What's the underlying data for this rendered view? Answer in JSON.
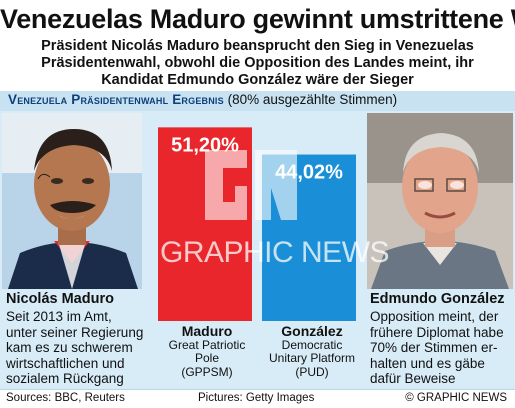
{
  "title": "Venezuelas Maduro gewinnt umstrittene Wahl",
  "subtitle": {
    "lines": [
      "Präsident Nicolás Maduro beansprucht den Sieg in Venezuelas",
      "Präsidentenwahl, obwohl die Opposition des Landes meint, ihr",
      "Kandidat  Edmundo González wäre der Sieger"
    ]
  },
  "panel": {
    "title_strong": "Venezuela Präsidentenwahl Ergebnis",
    "title_note": "(80% ausgezählte Stimmen)"
  },
  "candidates": {
    "left": {
      "name": "Nicolás Maduro",
      "description": [
        "Seit 2013 im Amt,",
        "unter seiner Regierung",
        "kam es zu schwerem",
        "wirtschaftlichen und",
        "sozialem Rückgang"
      ]
    },
    "right": {
      "name": "Edmundo González",
      "description": [
        "Opposition meint, der",
        "frühere Diplomat habe",
        "70% der Stimmen er-",
        "halten und es gäbe",
        "dafür Beweise"
      ]
    }
  },
  "chart_data": {
    "type": "bar",
    "categories": [
      "Maduro",
      "González"
    ],
    "values": [
      51.2,
      44.02
    ],
    "value_labels": [
      "51,20%",
      "44,02%"
    ],
    "party_labels": [
      [
        "Great Patriotic",
        "Pole",
        "(GPPSM)"
      ],
      [
        "Democratic",
        "Unitary Platform",
        "(PUD)"
      ]
    ],
    "colors": [
      "#e8262b",
      "#1a8fd7"
    ],
    "ylim": [
      0,
      55
    ],
    "grid": false,
    "legend": "none"
  },
  "watermark": "GRAPHIC NEWS",
  "footer": {
    "sources": "Sources: BBC, Reuters",
    "pictures": "Pictures: Getty Images",
    "copyright": "© GRAPHIC NEWS"
  }
}
